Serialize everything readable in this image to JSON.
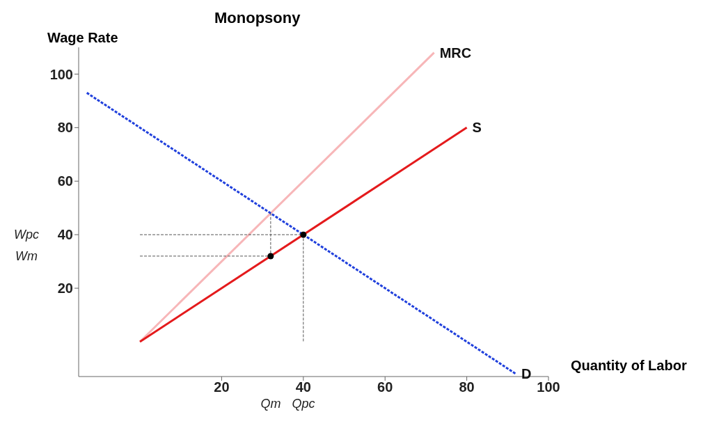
{
  "chart_data": {
    "type": "line",
    "title": "Monopsony",
    "xlabel": "Quantity of Labor",
    "ylabel": "Wage Rate",
    "xlim": [
      -15,
      100
    ],
    "ylim": [
      -13,
      110
    ],
    "xticks": [
      20,
      40,
      60,
      80,
      100
    ],
    "yticks": [
      20,
      40,
      60,
      80,
      100
    ],
    "grid": false,
    "series": [
      {
        "name": "MRC",
        "color": "#f7b6b8",
        "line_style": "solid",
        "marker": "none",
        "x": [
          0,
          72
        ],
        "values": [
          0,
          108
        ]
      },
      {
        "name": "S",
        "color": "#e41a1c",
        "line_style": "solid",
        "marker": "none",
        "x": [
          0,
          80
        ],
        "values": [
          0,
          80
        ]
      },
      {
        "name": "D",
        "color": "#1f3fdc",
        "line_style": "dashed",
        "marker": "none",
        "x": [
          -13,
          92
        ],
        "values": [
          93,
          -12
        ]
      },
      {
        "color": "#555555",
        "line_style": "dashed",
        "marker": "none",
        "x": [
          0,
          40,
          40
        ],
        "values": [
          40,
          40,
          0
        ]
      },
      {
        "color": "#555555",
        "line_style": "dashed",
        "marker": "none",
        "x": [
          0,
          32,
          32
        ],
        "values": [
          32,
          32,
          48
        ]
      },
      {
        "type": "scatter",
        "color": "#000000",
        "marker": "circle",
        "x": [
          32,
          40
        ],
        "values": [
          32,
          40
        ]
      }
    ],
    "annotations": [
      "Qm",
      "Qpc",
      "Wpc",
      "Wm"
    ]
  }
}
